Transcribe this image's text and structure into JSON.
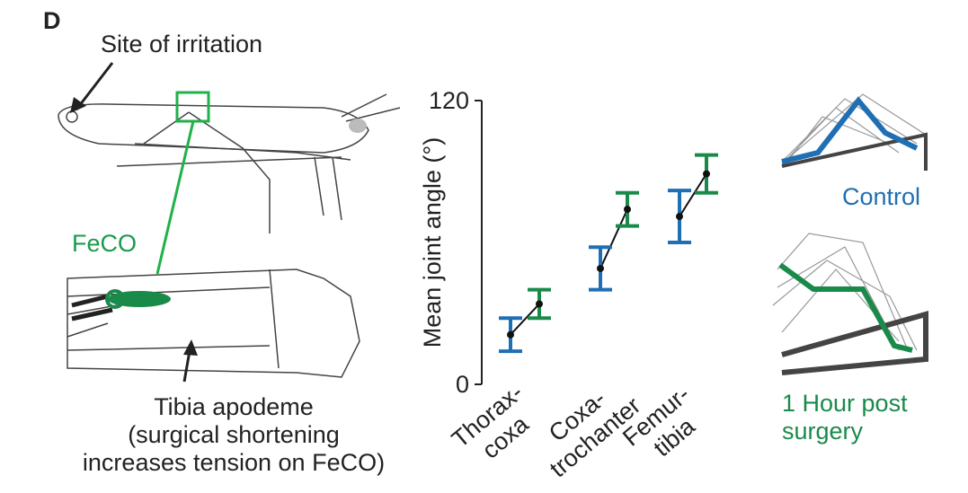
{
  "figure": {
    "panel": "D",
    "site": "Site of irritation",
    "feco": "FeCO",
    "apodeme": "Tibia apodeme\n(surgical shortening\nincreases tension on FeCO)"
  },
  "chart_data": {
    "type": "errorbar",
    "y_label": "Mean joint angle (°)",
    "categories": [
      "Thorax-\ncoxa",
      "Coxa-\ntrochanter",
      "Femur-\ntibia"
    ],
    "ylim": [
      0,
      120
    ],
    "yticks": [
      0,
      120
    ],
    "series": [
      {
        "name": "Control",
        "color": "#1f6fb4",
        "values": [
          21,
          49,
          71
        ],
        "errors": [
          7,
          9,
          11
        ]
      },
      {
        "name": "1 Hour post\nsurgery",
        "color": "#1a8a4a",
        "values": [
          34,
          74,
          89
        ],
        "errors": [
          6,
          7,
          8
        ]
      }
    ]
  }
}
